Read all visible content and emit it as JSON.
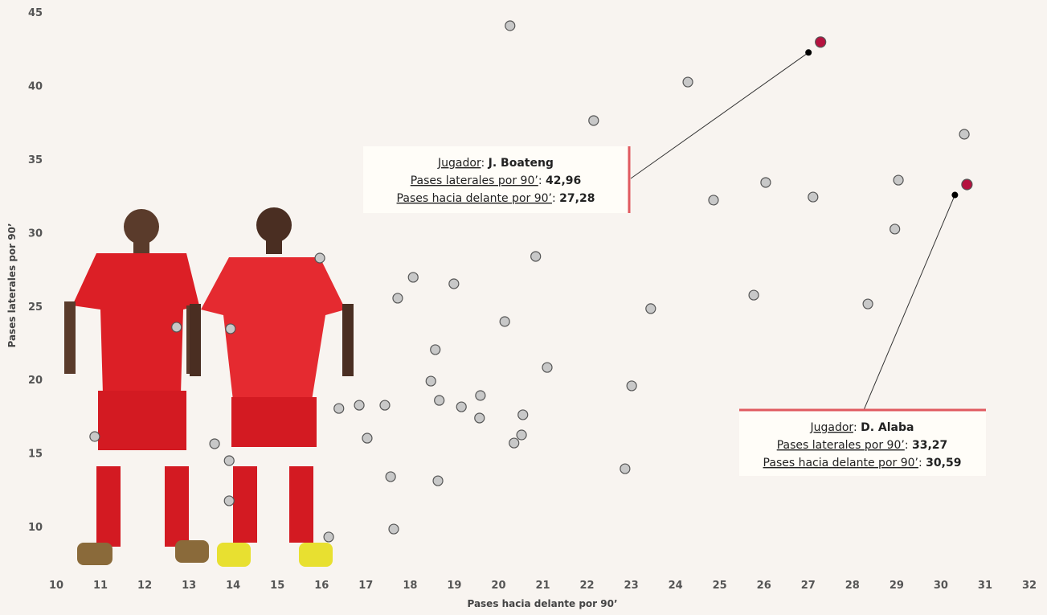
{
  "chart_data": {
    "type": "scatter",
    "x_label": "Pases hacia delante por 90’",
    "y_label": "Pases laterales por 90’",
    "xlim": [
      10,
      32
    ],
    "ylim": [
      7,
      45
    ],
    "xticks": [
      10,
      11,
      12,
      13,
      14,
      15,
      16,
      17,
      18,
      19,
      20,
      21,
      22,
      23,
      24,
      25,
      26,
      27,
      28,
      29,
      30,
      31,
      32
    ],
    "yticks": [
      10,
      15,
      20,
      25,
      30,
      35,
      40,
      45
    ],
    "color": "#c8c8c8",
    "x": [
      20.26,
      24.28,
      22.15,
      30.53,
      29.04,
      26.04,
      27.11,
      24.86,
      28.96,
      20.84,
      15.96,
      18.07,
      18.99,
      17.72,
      25.77,
      23.44,
      28.35,
      20.14,
      12.72,
      13.94,
      18.57,
      21.1,
      18.47,
      23.01,
      18.66,
      19.59,
      16.85,
      17.43,
      19.16,
      16.39,
      20.55,
      19.57,
      17.03,
      20.52,
      10.87,
      20.35,
      13.58,
      13.91,
      22.86,
      17.56,
      18.63,
      13.91,
      16.16,
      17.63
    ],
    "values": [
      44.07,
      40.24,
      37.62,
      36.69,
      33.57,
      33.41,
      32.42,
      32.21,
      30.24,
      28.38,
      28.27,
      26.96,
      26.52,
      25.54,
      25.75,
      24.83,
      25.15,
      23.95,
      23.57,
      23.46,
      22.04,
      20.83,
      19.9,
      19.58,
      18.59,
      18.92,
      18.26,
      18.26,
      18.15,
      18.04,
      17.61,
      17.39,
      16.02,
      16.24,
      16.13,
      15.69,
      15.64,
      14.49,
      13.94,
      13.4,
      13.12,
      11.76,
      9.3,
      9.84
    ],
    "annotations": [
      {
        "player_label": "Jugador",
        "player": "J. Boateng",
        "y_text": "Pases laterales por 90’",
        "y": 42.96,
        "y_value_label": "42,96",
        "x_text": "Pases hacia delante por 90’",
        "x": 27.28,
        "x_value_label": "27,28",
        "color": "#b5123f"
      },
      {
        "player_label": "Jugador",
        "player": "D. Alaba",
        "y_text": "Pases laterales por 90’",
        "y": 33.27,
        "y_value_label": "33,27",
        "x_text": "Pases hacia delante por 90’",
        "x": 30.59,
        "x_value_label": "30,59",
        "color": "#b5123f"
      }
    ]
  }
}
